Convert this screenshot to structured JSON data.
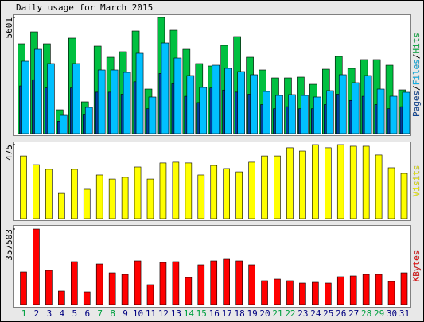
{
  "title": "Daily usage for March 2015",
  "legend_separator": "/",
  "categories": [
    "1",
    "2",
    "3",
    "4",
    "5",
    "6",
    "7",
    "8",
    "9",
    "10",
    "11",
    "12",
    "13",
    "14",
    "15",
    "16",
    "17",
    "18",
    "19",
    "20",
    "21",
    "22",
    "23",
    "24",
    "25",
    "26",
    "27",
    "28",
    "29",
    "30",
    "31"
  ],
  "category_colors": [
    "#00a040",
    "#000080",
    "#000080",
    "#000080",
    "#000080",
    "#000080",
    "#00a040",
    "#00a040",
    "#000080",
    "#000080",
    "#000080",
    "#000080",
    "#000080",
    "#00a040",
    "#00a040",
    "#000080",
    "#000080",
    "#000080",
    "#000080",
    "#000080",
    "#00a040",
    "#00a040",
    "#000080",
    "#000080",
    "#000080",
    "#000080",
    "#000080",
    "#00a040",
    "#00a040",
    "#000080",
    "#000080"
  ],
  "chart_data": [
    {
      "type": "bar",
      "ylim": [
        0,
        5601
      ],
      "yticks": [
        5601
      ],
      "series": [
        {
          "name": "Hits",
          "color": "#00c040",
          "values": [
            4335,
            4910,
            4335,
            1150,
            4604,
            1535,
            4220,
            3683,
            3951,
            4949,
            2148,
            5601,
            4987,
            4066,
            3376,
            3261,
            4258,
            4680,
            3683,
            3069,
            2685,
            2685,
            2724,
            2378,
            3107,
            3721,
            3146,
            3568,
            3568,
            3299,
            2110
          ]
        },
        {
          "name": "Pages",
          "color": "#0040a0",
          "values": [
            2300,
            2600,
            2200,
            600,
            2200,
            900,
            2000,
            2000,
            1900,
            2500,
            1200,
            2900,
            2400,
            1800,
            1500,
            2200,
            2100,
            2000,
            1900,
            1400,
            1200,
            1300,
            1200,
            1200,
            1400,
            1900,
            1600,
            1800,
            1400,
            1200,
            1300
          ]
        },
        {
          "name": "Files",
          "color": "#00c0ff",
          "values": [
            3491,
            4066,
            3376,
            882,
            3376,
            1266,
            3069,
            3069,
            2954,
            3875,
            1765,
            4373,
            3644,
            2800,
            2225,
            3299,
            3146,
            2992,
            2839,
            2033,
            1841,
            1880,
            1841,
            1765,
            2072,
            2839,
            2455,
            2800,
            2148,
            1803,
            1995
          ]
        }
      ]
    },
    {
      "type": "bar",
      "ylim": [
        0,
        475
      ],
      "yticks": [
        475
      ],
      "series": [
        {
          "name": "Visits",
          "color": "#ffff00",
          "values": [
            403,
            347,
            317,
            163,
            317,
            189,
            281,
            255,
            266,
            332,
            255,
            358,
            363,
            358,
            281,
            342,
            322,
            301,
            363,
            403,
            403,
            455,
            434,
            475,
            455,
            475,
            465,
            465,
            409,
            327,
            291
          ]
        }
      ]
    },
    {
      "type": "bar",
      "ylim": [
        0,
        357503
      ],
      "yticks": [
        357503
      ],
      "series": [
        {
          "name": "KBytes",
          "color": "#ff0000",
          "values": [
            154300,
            357503,
            161800,
            64000,
            203200,
            60200,
            191900,
            150500,
            143000,
            207000,
            94100,
            199400,
            203200,
            127900,
            188200,
            207000,
            214500,
            207000,
            188200,
            112900,
            120400,
            112900,
            101600,
            105400,
            101600,
            131700,
            135500,
            143000,
            143000,
            109100,
            150500
          ]
        }
      ]
    }
  ]
}
